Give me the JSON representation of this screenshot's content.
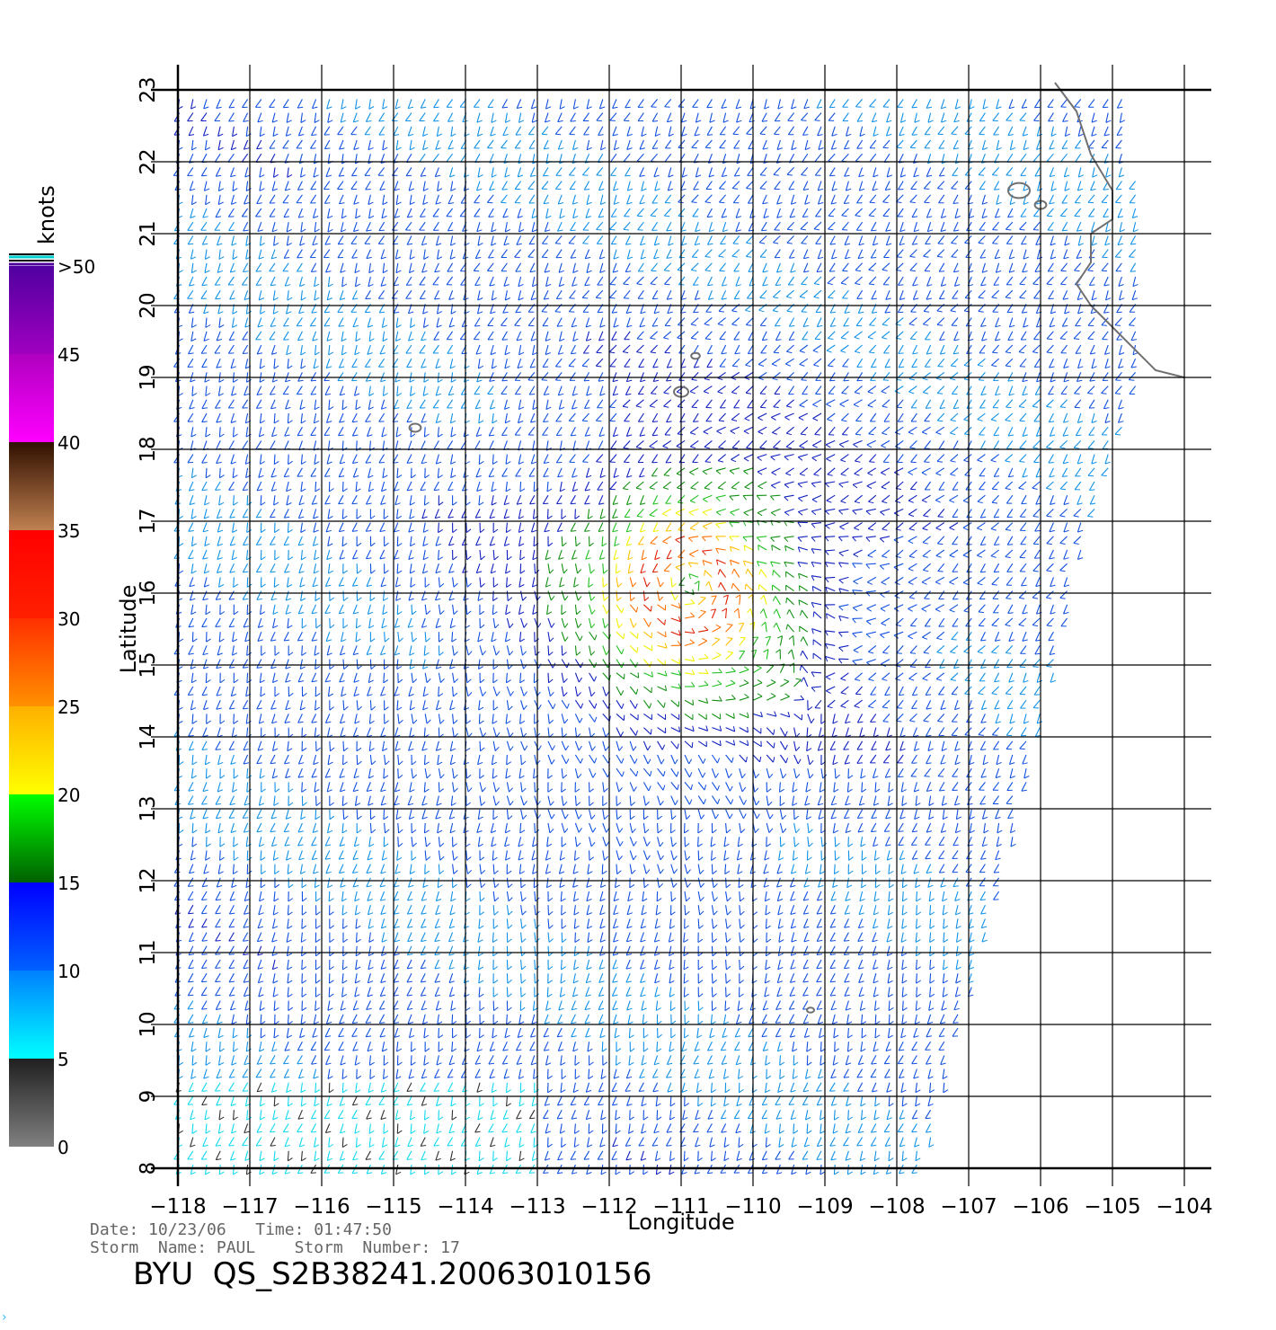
{
  "colorbar": {
    "unit_label": "knots",
    "entries": [
      {
        "label": "0",
        "value": 0
      },
      {
        "label": "5",
        "value": 5
      },
      {
        "label": "10",
        "value": 10
      },
      {
        "label": "15",
        "value": 15
      },
      {
        "label": "20",
        "value": 20
      },
      {
        "label": "25",
        "value": 25
      },
      {
        "label": "30",
        "value": 30
      },
      {
        "label": "35",
        "value": 35
      },
      {
        "label": "40",
        "value": 40
      },
      {
        "label": "45",
        "value": 45
      },
      {
        "label": ">50",
        "value": 50
      }
    ],
    "bands": [
      {
        "from": 0,
        "to": 5,
        "colors": [
          "#808080",
          "#202020"
        ]
      },
      {
        "from": 5,
        "to": 10,
        "colors": [
          "#00ffff",
          "#0080ff"
        ]
      },
      {
        "from": 10,
        "to": 15,
        "colors": [
          "#0060ff",
          "#0000ff"
        ]
      },
      {
        "from": 15,
        "to": 20,
        "colors": [
          "#006000",
          "#00ff00"
        ]
      },
      {
        "from": 20,
        "to": 25,
        "colors": [
          "#ffff00",
          "#ffb000"
        ]
      },
      {
        "from": 25,
        "to": 30,
        "colors": [
          "#ff9000",
          "#ff3000"
        ]
      },
      {
        "from": 30,
        "to": 35,
        "colors": [
          "#ff2000",
          "#ff0000"
        ]
      },
      {
        "from": 35,
        "to": 40,
        "colors": [
          "#c08050",
          "#301000"
        ]
      },
      {
        "from": 40,
        "to": 45,
        "colors": [
          "#ff00ff",
          "#b000c0"
        ]
      },
      {
        "from": 45,
        "to": 50,
        "colors": [
          "#a000c0",
          "#5000a0"
        ]
      }
    ]
  },
  "map": {
    "lon_range": [
      -118,
      -104
    ],
    "lat_range": [
      8,
      23
    ],
    "x_ticks": [
      {
        "value": -118,
        "label": "−118"
      },
      {
        "value": -117,
        "label": "−117"
      },
      {
        "value": -116,
        "label": "−116"
      },
      {
        "value": -115,
        "label": "−115"
      },
      {
        "value": -114,
        "label": "−114"
      },
      {
        "value": -113,
        "label": "−113"
      },
      {
        "value": -112,
        "label": "−112"
      },
      {
        "value": -111,
        "label": "−111"
      },
      {
        "value": -110,
        "label": "−110"
      },
      {
        "value": -109,
        "label": "−109"
      },
      {
        "value": -108,
        "label": "−108"
      },
      {
        "value": -107,
        "label": "−107"
      },
      {
        "value": -106,
        "label": "−106"
      },
      {
        "value": -105,
        "label": "−105"
      },
      {
        "value": -104,
        "label": "−104"
      }
    ],
    "y_ticks": [
      {
        "value": 8,
        "label": "8"
      },
      {
        "value": 9,
        "label": "9"
      },
      {
        "value": 10,
        "label": "10"
      },
      {
        "value": 11,
        "label": "11"
      },
      {
        "value": 12,
        "label": "12"
      },
      {
        "value": 13,
        "label": "13"
      },
      {
        "value": 14,
        "label": "14"
      },
      {
        "value": 15,
        "label": "15"
      },
      {
        "value": 16,
        "label": "16"
      },
      {
        "value": 17,
        "label": "17"
      },
      {
        "value": 18,
        "label": "18"
      },
      {
        "value": 19,
        "label": "19"
      },
      {
        "value": 20,
        "label": "20"
      },
      {
        "value": 21,
        "label": "21"
      },
      {
        "value": 22,
        "label": "22"
      },
      {
        "value": 23,
        "label": "23"
      }
    ],
    "x_label": "Longitude",
    "y_label": "Latitude",
    "storm_center": {
      "lon": -110.9,
      "lat": 16.1
    },
    "swath_east_edge": [
      {
        "lat": 22.5,
        "lon": -104.7
      },
      {
        "lat": 19.0,
        "lon": -104.6
      },
      {
        "lat": 17.0,
        "lon": -105.3
      },
      {
        "lat": 14.5,
        "lon": -105.9
      },
      {
        "lat": 12.0,
        "lon": -106.5
      },
      {
        "lat": 10.0,
        "lon": -107.1
      },
      {
        "lat": 8.0,
        "lon": -107.6
      }
    ],
    "coastline": [
      {
        "lon": -105.8,
        "lat": 23.1
      },
      {
        "lon": -105.5,
        "lat": 22.7
      },
      {
        "lon": -105.3,
        "lat": 22.1
      },
      {
        "lon": -105.0,
        "lat": 21.6
      },
      {
        "lon": -105.0,
        "lat": 21.2
      },
      {
        "lon": -105.3,
        "lat": 21.0
      },
      {
        "lon": -105.3,
        "lat": 20.6
      },
      {
        "lon": -105.5,
        "lat": 20.3
      },
      {
        "lon": -105.3,
        "lat": 20.0
      },
      {
        "lon": -104.9,
        "lat": 19.6
      },
      {
        "lon": -104.4,
        "lat": 19.1
      },
      {
        "lon": -104.0,
        "lat": 19.0
      }
    ],
    "islands": [
      {
        "lon": -114.7,
        "lat": 18.3,
        "r": 0.08
      },
      {
        "lon": -111.0,
        "lat": 18.8,
        "r": 0.1
      },
      {
        "lon": -110.8,
        "lat": 19.3,
        "r": 0.06
      },
      {
        "lon": -106.3,
        "lat": 21.6,
        "r": 0.15
      },
      {
        "lon": -106.0,
        "lat": 21.4,
        "r": 0.08
      },
      {
        "lon": -109.2,
        "lat": 10.2,
        "r": 0.05
      }
    ]
  },
  "info": {
    "date_line": "Date: 10/23/06   Time: 01:47:50",
    "storm_line": "Storm  Name: PAUL    Storm  Number: 17",
    "product_id": "BYU  QS_S2B38241.20063010156"
  },
  "corner_mark": "›"
}
